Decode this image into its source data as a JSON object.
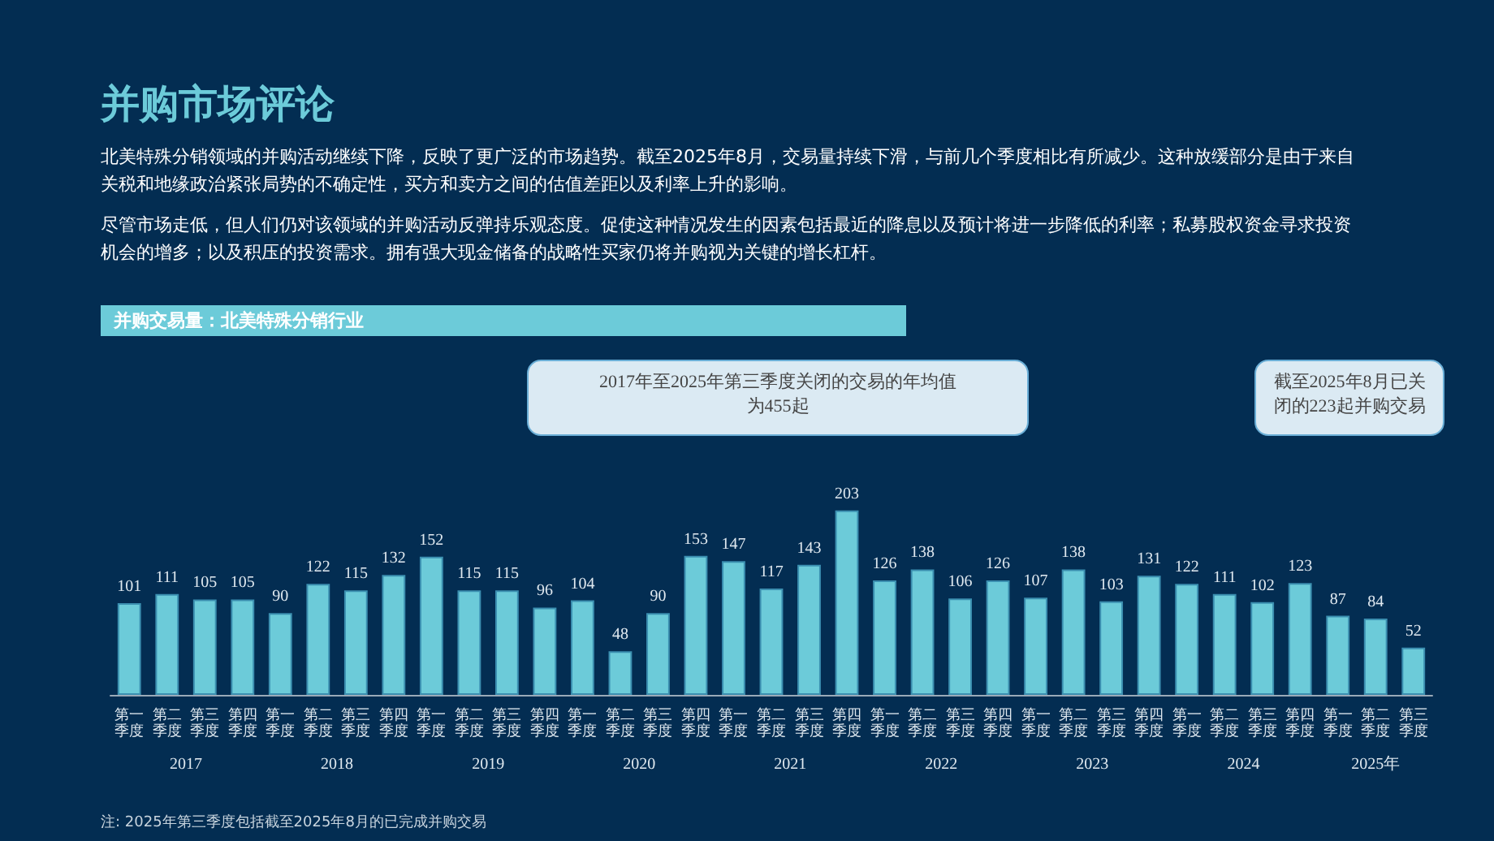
{
  "chart_data": {
    "type": "bar",
    "title": "并购市场评论",
    "subtitle": "北美特殊分销领域的并购活动继续下降，反映了更广泛的市场趋势。截至2025年8月，交易量持续下滑，与前几个季度相比有所减少。这种放缓部分是由于来自关税和地缘政治紧张局势的不确定性，买方和卖方之间的估值差距以及利率上升的影响。",
    "categories": [
      "第一季度",
      "第二季度",
      "第三季度",
      "第四季度",
      "第一季度",
      "第二季度",
      "第三季度",
      "第四季度",
      "第一季度",
      "第二季度",
      "第三季度",
      "第四季度",
      "第一季度",
      "第二季度",
      "第三季度",
      "第四季度",
      "第一季度",
      "第二季度",
      "第三季度",
      "第四季度",
      "第一季度",
      "第二季度",
      "第三季度",
      "第四季度",
      "第一季度",
      "第二季度",
      "第三季度",
      "第四季度",
      "第一季度",
      "第二季度",
      "第三季度",
      "第四季度",
      "第一季度",
      "第二季度",
      "第三季度"
    ],
    "values": [
      101,
      111,
      105,
      105,
      90,
      122,
      115,
      132,
      152,
      115,
      115,
      96,
      104,
      48,
      90,
      153,
      147,
      117,
      143,
      203,
      126,
      138,
      106,
      126,
      107,
      138,
      103,
      131,
      122,
      111,
      102,
      123,
      87,
      84,
      52
    ],
    "color": "#6ccbd9",
    "data_labels": true,
    "annotations": [
      "尽管市场走低，但人们仍对该领域的并购活动反弹持乐观态度。促使这种情况发生的因素包括最近的降息以及预计将进一步降低的利率；私募股权资金寻求投资机会的增多；以及积压的投资需求。拥有强大现金储备的战略性买家仍将并购视为关键的增长杠杆。",
      "并购交易量：北美特殊分销行业",
      "2017年至2025年第三季度关闭的交易的年均值为455起",
      "截至2025年8月已关闭的223起并购交易",
      "2017",
      "2018",
      "2019",
      "2020",
      "2021",
      "2022",
      "2023",
      "2024",
      "2025年",
      "注: 2025年第三季度包括截至2025年8月的已完成并购交易"
    ]
  }
}
